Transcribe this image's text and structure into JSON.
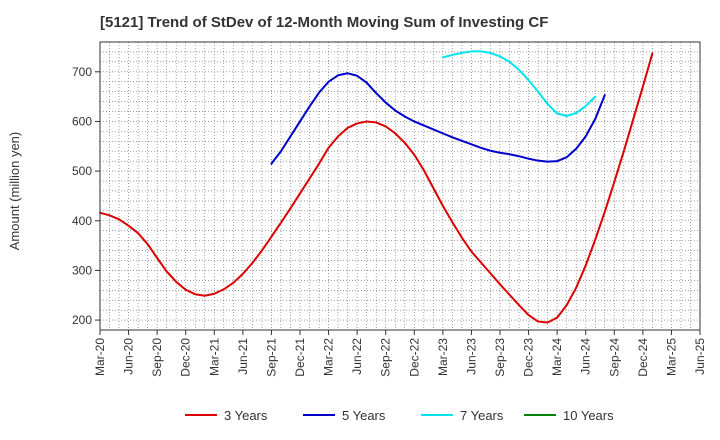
{
  "chart_data": {
    "type": "line",
    "title": "[5121]  Trend of StDev of 12-Month Moving Sum of Investing CF",
    "xlabel": "",
    "ylabel": "Amount (million yen)",
    "ylim": [
      180,
      760
    ],
    "yticks": [
      200,
      300,
      400,
      500,
      600,
      700
    ],
    "xlim": [
      "2020-03",
      "2025-06"
    ],
    "x_ticks": [
      "Mar-20",
      "Jun-20",
      "Sep-20",
      "Dec-20",
      "Mar-21",
      "Jun-21",
      "Sep-21",
      "Dec-21",
      "Mar-22",
      "Jun-22",
      "Sep-22",
      "Dec-22",
      "Mar-23",
      "Jun-23",
      "Sep-23",
      "Dec-23",
      "Mar-24",
      "Jun-24",
      "Sep-24",
      "Dec-24",
      "Mar-25",
      "Jun-25"
    ],
    "grid": true,
    "legend_position": "bottom",
    "series": [
      {
        "name": "3 Years",
        "color": "#dd0000",
        "points": [
          [
            "2020-03",
            416
          ],
          [
            "2020-04",
            411
          ],
          [
            "2020-05",
            403
          ],
          [
            "2020-06",
            390
          ],
          [
            "2020-07",
            375
          ],
          [
            "2020-08",
            353
          ],
          [
            "2020-09",
            325
          ],
          [
            "2020-10",
            298
          ],
          [
            "2020-11",
            277
          ],
          [
            "2020-12",
            261
          ],
          [
            "2021-01",
            252
          ],
          [
            "2021-02",
            249
          ],
          [
            "2021-03",
            253
          ],
          [
            "2021-04",
            262
          ],
          [
            "2021-05",
            275
          ],
          [
            "2021-06",
            293
          ],
          [
            "2021-07",
            315
          ],
          [
            "2021-08",
            340
          ],
          [
            "2021-09",
            368
          ],
          [
            "2021-10",
            396
          ],
          [
            "2021-11",
            425
          ],
          [
            "2021-12",
            455
          ],
          [
            "2022-01",
            485
          ],
          [
            "2022-02",
            515
          ],
          [
            "2022-03",
            547
          ],
          [
            "2022-04",
            570
          ],
          [
            "2022-05",
            587
          ],
          [
            "2022-06",
            596
          ],
          [
            "2022-07",
            600
          ],
          [
            "2022-08",
            598
          ],
          [
            "2022-09",
            590
          ],
          [
            "2022-10",
            576
          ],
          [
            "2022-11",
            557
          ],
          [
            "2022-12",
            533
          ],
          [
            "2023-01",
            502
          ],
          [
            "2023-02",
            466
          ],
          [
            "2023-03",
            430
          ],
          [
            "2023-04",
            397
          ],
          [
            "2023-05",
            366
          ],
          [
            "2023-06",
            338
          ],
          [
            "2023-07",
            316
          ],
          [
            "2023-08",
            294
          ],
          [
            "2023-09",
            272
          ],
          [
            "2023-10",
            251
          ],
          [
            "2023-11",
            230
          ],
          [
            "2023-12",
            210
          ],
          [
            "2024-01",
            197
          ],
          [
            "2024-02",
            195
          ],
          [
            "2024-03",
            205
          ],
          [
            "2024-04",
            230
          ],
          [
            "2024-05",
            265
          ],
          [
            "2024-06",
            310
          ],
          [
            "2024-07",
            362
          ],
          [
            "2024-08",
            418
          ],
          [
            "2024-09",
            478
          ],
          [
            "2024-10",
            540
          ],
          [
            "2024-11",
            605
          ],
          [
            "2024-12",
            670
          ],
          [
            "2025-01",
            737
          ]
        ]
      },
      {
        "name": "5 Years",
        "color": "#0000cc",
        "points": [
          [
            "2021-09",
            515
          ],
          [
            "2021-10",
            540
          ],
          [
            "2021-11",
            570
          ],
          [
            "2021-12",
            600
          ],
          [
            "2022-01",
            630
          ],
          [
            "2022-02",
            658
          ],
          [
            "2022-03",
            680
          ],
          [
            "2022-04",
            693
          ],
          [
            "2022-05",
            697
          ],
          [
            "2022-06",
            692
          ],
          [
            "2022-07",
            678
          ],
          [
            "2022-08",
            657
          ],
          [
            "2022-09",
            638
          ],
          [
            "2022-10",
            622
          ],
          [
            "2022-11",
            610
          ],
          [
            "2022-12",
            600
          ],
          [
            "2023-01",
            592
          ],
          [
            "2023-02",
            584
          ],
          [
            "2023-03",
            576
          ],
          [
            "2023-04",
            568
          ],
          [
            "2023-05",
            561
          ],
          [
            "2023-06",
            554
          ],
          [
            "2023-07",
            547
          ],
          [
            "2023-08",
            541
          ],
          [
            "2023-09",
            537
          ],
          [
            "2023-10",
            534
          ],
          [
            "2023-11",
            530
          ],
          [
            "2023-12",
            525
          ],
          [
            "2024-01",
            521
          ],
          [
            "2024-02",
            519
          ],
          [
            "2024-03",
            520
          ],
          [
            "2024-04",
            528
          ],
          [
            "2024-05",
            545
          ],
          [
            "2024-06",
            570
          ],
          [
            "2024-07",
            605
          ],
          [
            "2024-08",
            653
          ]
        ]
      },
      {
        "name": "7 Years",
        "color": "#00e5ee",
        "points": [
          [
            "2023-03",
            729
          ],
          [
            "2023-04",
            734
          ],
          [
            "2023-05",
            738
          ],
          [
            "2023-06",
            741
          ],
          [
            "2023-07",
            741
          ],
          [
            "2023-08",
            738
          ],
          [
            "2023-09",
            731
          ],
          [
            "2023-10",
            720
          ],
          [
            "2023-11",
            704
          ],
          [
            "2023-12",
            683
          ],
          [
            "2024-01",
            660
          ],
          [
            "2024-02",
            635
          ],
          [
            "2024-03",
            616
          ],
          [
            "2024-04",
            611
          ],
          [
            "2024-05",
            617
          ],
          [
            "2024-06",
            631
          ],
          [
            "2024-07",
            650
          ]
        ]
      },
      {
        "name": "10 Years",
        "color": "#008000",
        "points": []
      }
    ]
  }
}
